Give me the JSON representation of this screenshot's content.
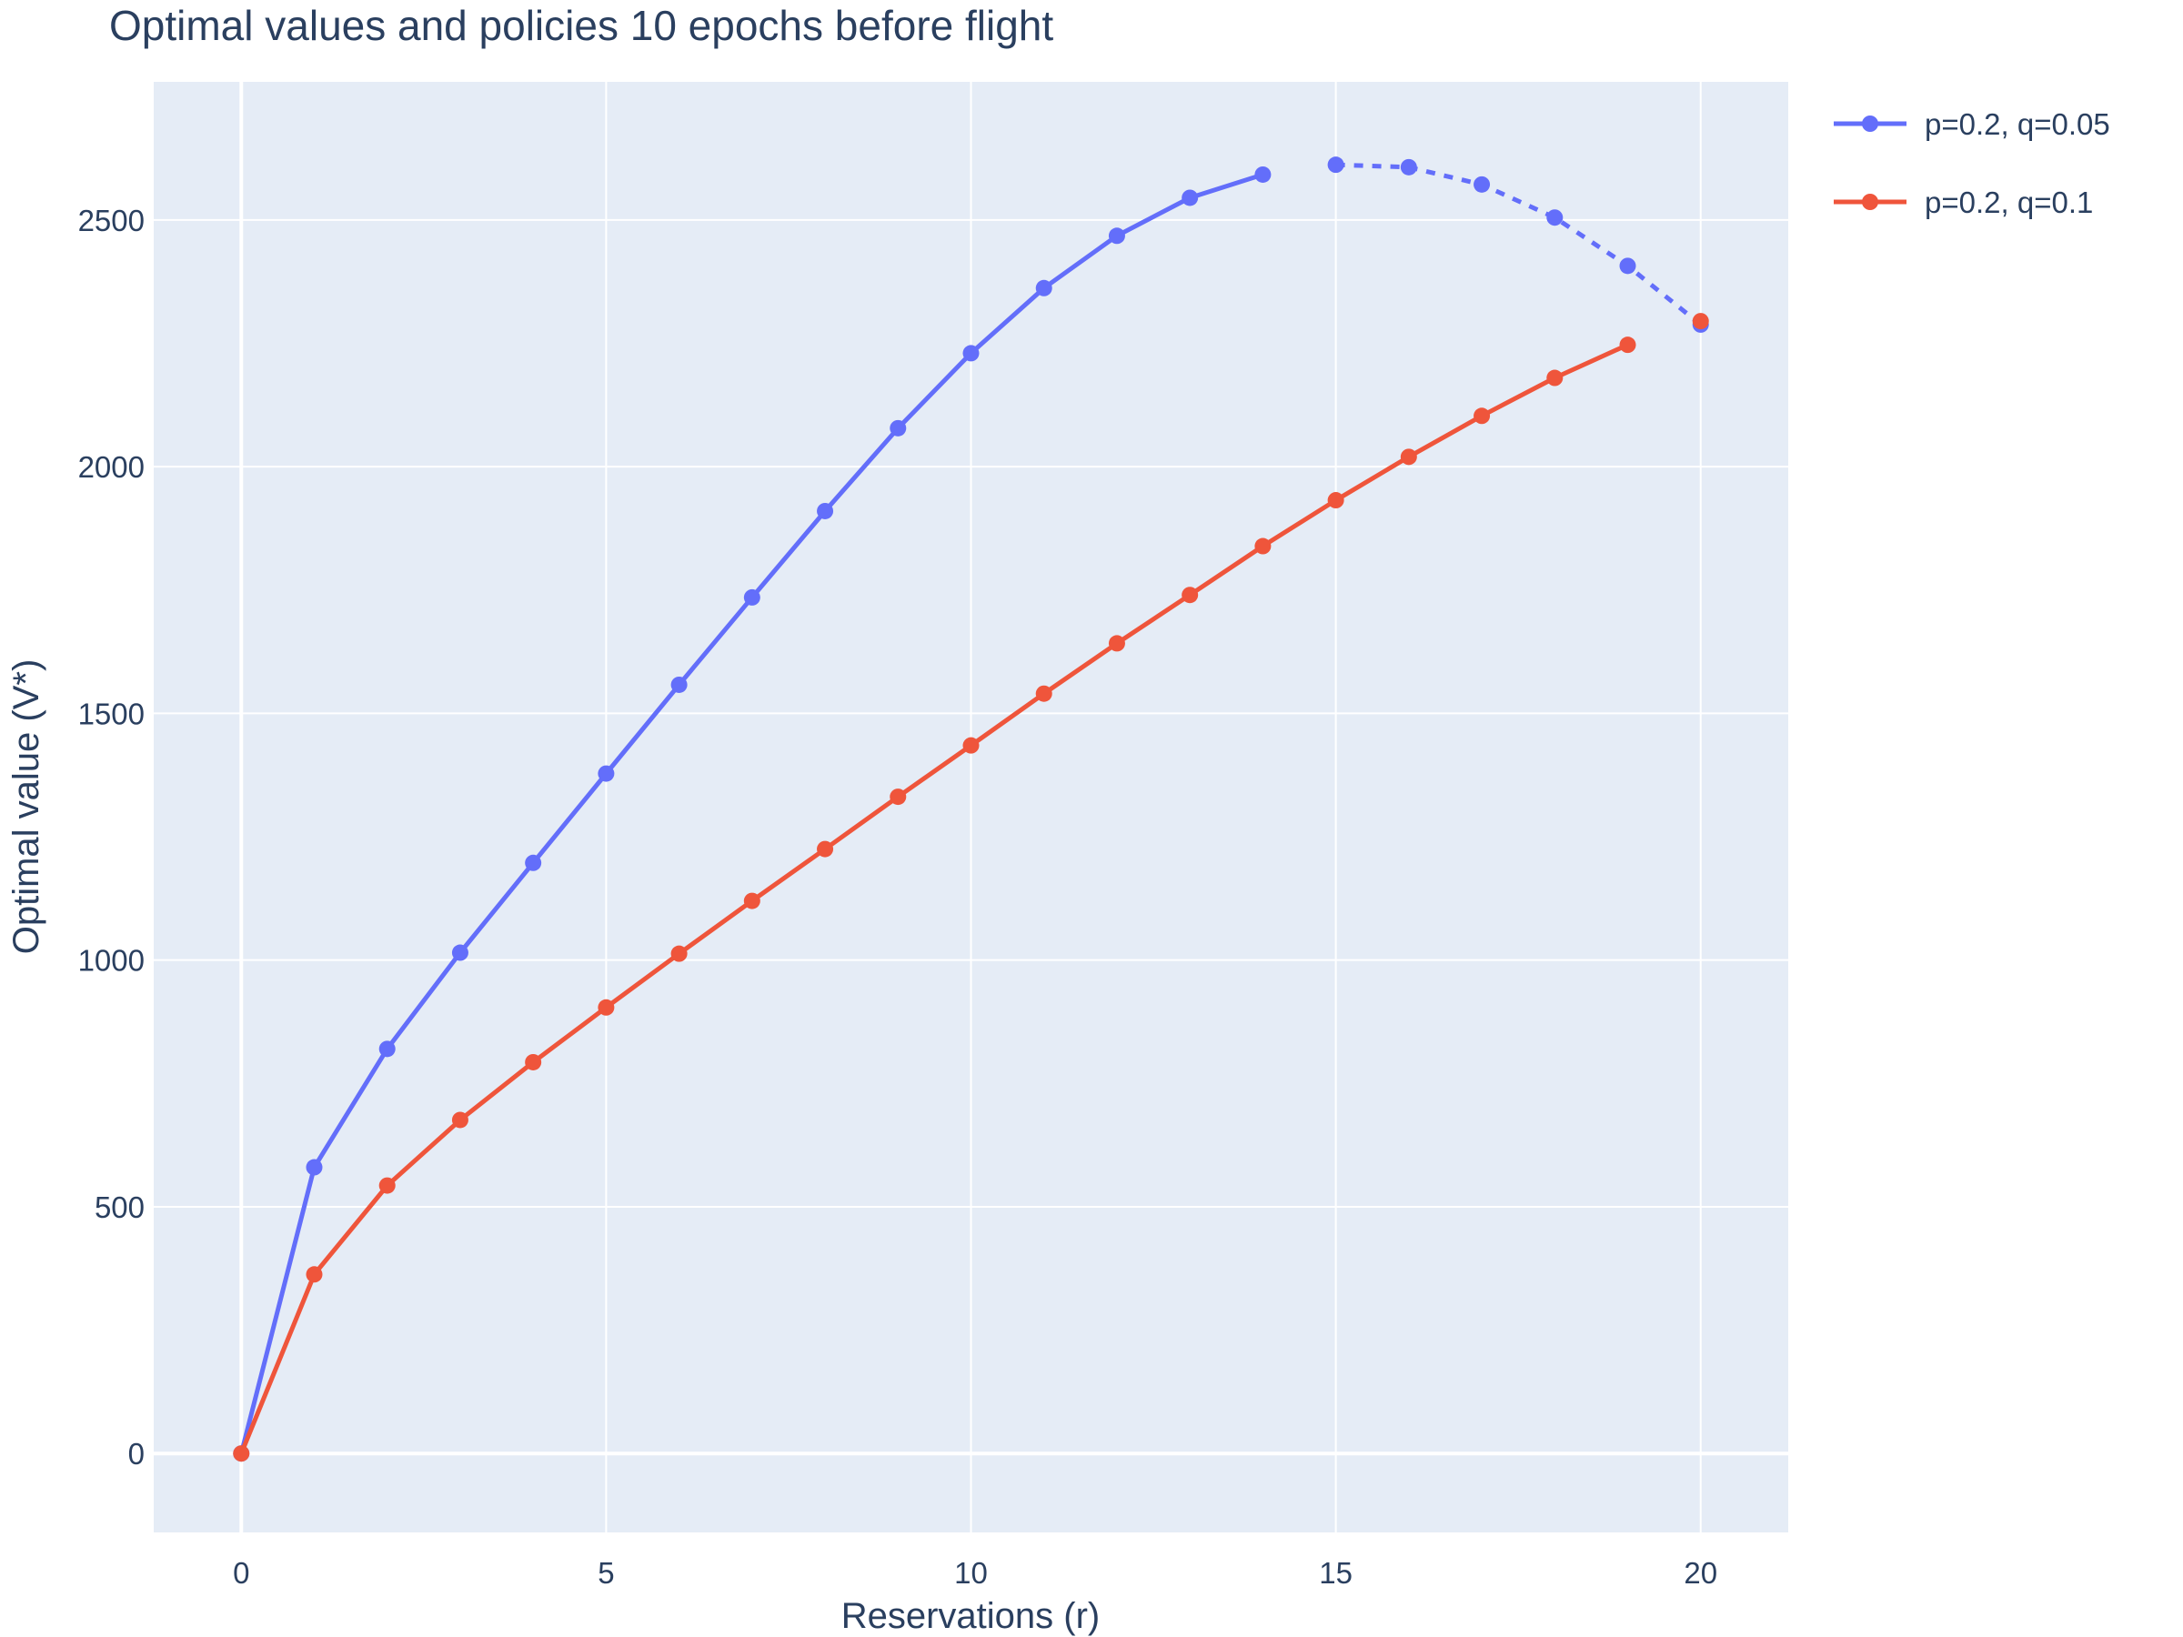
{
  "chart_data": {
    "type": "line",
    "title": "Optimal values and policies 10 epochs before flight",
    "xlabel": "Reservations (r)",
    "ylabel": "Optimal value (V*)",
    "xlim": [
      -1.2,
      21.2
    ],
    "ylim": [
      -160,
      2780
    ],
    "xticks": [
      0,
      5,
      10,
      15,
      20
    ],
    "yticks": [
      0,
      500,
      1000,
      1500,
      2000,
      2500
    ],
    "grid": true,
    "legend_position": "right",
    "background": "#e5ecf6",
    "series": [
      {
        "name": "p=0.2, q=0.05",
        "color": "#636efa",
        "x": [
          0,
          1,
          2,
          3,
          4,
          5,
          6,
          7,
          8,
          9,
          10,
          11,
          12,
          13,
          14,
          15,
          16,
          17,
          18,
          19,
          20
        ],
        "values": [
          0,
          580,
          820,
          1015,
          1197,
          1378,
          1558,
          1735,
          1910,
          2078,
          2230,
          2362,
          2468,
          2545,
          2592,
          2612,
          2607,
          2572,
          2505,
          2407,
          2288
        ],
        "segments": [
          {
            "from_x": 0,
            "to_x": 14,
            "dash": "solid"
          },
          {
            "from_x": 15,
            "to_x": 20,
            "dash": "dot"
          }
        ]
      },
      {
        "name": "p=0.2, q=0.1",
        "color": "#ef553b",
        "x": [
          0,
          1,
          2,
          3,
          4,
          5,
          6,
          7,
          8,
          9,
          10,
          11,
          12,
          13,
          14,
          15,
          16,
          17,
          18,
          19,
          20
        ],
        "values": [
          0,
          363,
          543,
          676,
          793,
          904,
          1013,
          1120,
          1225,
          1331,
          1435,
          1540,
          1642,
          1740,
          1839,
          1932,
          2020,
          2103,
          2180,
          2247,
          2295
        ],
        "segments": [
          {
            "from_x": 0,
            "to_x": 19,
            "dash": "solid"
          }
        ]
      }
    ]
  }
}
